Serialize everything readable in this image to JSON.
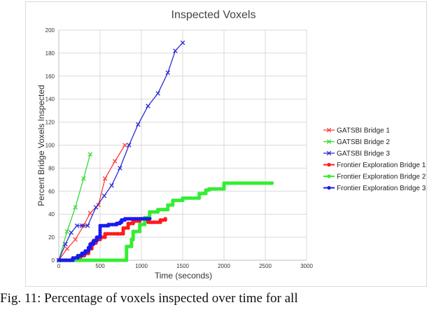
{
  "chart_data": {
    "type": "line",
    "title": "Inspected Voxels",
    "xlabel": "Time (seconds)",
    "ylabel": "Percent Bridge Voxels Inspected",
    "xlim": [
      0,
      3000
    ],
    "ylim": [
      0,
      200
    ],
    "x_ticks": [
      0,
      500,
      1000,
      1500,
      2000,
      2500,
      3000
    ],
    "y_ticks": [
      0,
      20,
      40,
      60,
      80,
      100,
      120,
      140,
      160,
      180,
      200
    ],
    "grid": true,
    "legend_position": "right",
    "series": [
      {
        "name": "GATSBI Bridge 1",
        "color": "#ff3b3b",
        "marker": "x",
        "step": false,
        "points": [
          [
            0,
            0
          ],
          [
            100,
            10
          ],
          [
            200,
            18
          ],
          [
            300,
            30
          ],
          [
            380,
            41
          ],
          [
            480,
            48
          ],
          [
            560,
            71
          ],
          [
            680,
            86
          ],
          [
            800,
            100
          ]
        ]
      },
      {
        "name": "GATSBI Bridge 2",
        "color": "#33dd33",
        "marker": "x",
        "step": false,
        "points": [
          [
            0,
            0
          ],
          [
            100,
            25
          ],
          [
            200,
            46
          ],
          [
            300,
            71
          ],
          [
            380,
            92
          ]
        ]
      },
      {
        "name": "GATSBI Bridge 3",
        "color": "#2a2ad6",
        "marker": "x",
        "step": false,
        "points": [
          [
            0,
            0
          ],
          [
            80,
            14
          ],
          [
            150,
            24
          ],
          [
            220,
            30
          ],
          [
            280,
            30
          ],
          [
            350,
            30
          ],
          [
            450,
            46
          ],
          [
            550,
            56
          ],
          [
            640,
            65
          ],
          [
            740,
            80
          ],
          [
            850,
            100
          ],
          [
            960,
            118
          ],
          [
            1080,
            134
          ],
          [
            1200,
            145
          ],
          [
            1320,
            163
          ],
          [
            1410,
            182
          ],
          [
            1500,
            189
          ]
        ]
      },
      {
        "name": "Frontier Exploration Bridge 1",
        "color": "#ff1a1a",
        "marker": "dot",
        "step": true,
        "points": [
          [
            0,
            0
          ],
          [
            150,
            0
          ],
          [
            200,
            2
          ],
          [
            260,
            4
          ],
          [
            310,
            6
          ],
          [
            360,
            10
          ],
          [
            400,
            15
          ],
          [
            450,
            18
          ],
          [
            500,
            20
          ],
          [
            560,
            23
          ],
          [
            720,
            23
          ],
          [
            780,
            28
          ],
          [
            840,
            32
          ],
          [
            900,
            34
          ],
          [
            980,
            36
          ],
          [
            1080,
            33
          ],
          [
            1150,
            33
          ],
          [
            1230,
            35
          ],
          [
            1290,
            36
          ]
        ]
      },
      {
        "name": "Frontier Exploration Bridge 2",
        "color": "#33ee33",
        "marker": "dot",
        "step": true,
        "points": [
          [
            0,
            0
          ],
          [
            800,
            0
          ],
          [
            820,
            12
          ],
          [
            880,
            18
          ],
          [
            900,
            25
          ],
          [
            980,
            31
          ],
          [
            1040,
            37
          ],
          [
            1100,
            42
          ],
          [
            1200,
            44
          ],
          [
            1320,
            48
          ],
          [
            1380,
            52
          ],
          [
            1500,
            54
          ],
          [
            1700,
            58
          ],
          [
            1780,
            61
          ],
          [
            1820,
            62
          ],
          [
            2000,
            67
          ],
          [
            2580,
            67
          ]
        ]
      },
      {
        "name": "Frontier Exploration Bridge 3",
        "color": "#1a1aee",
        "marker": "dot",
        "step": true,
        "points": [
          [
            0,
            0
          ],
          [
            140,
            0
          ],
          [
            170,
            2
          ],
          [
            230,
            4
          ],
          [
            280,
            6
          ],
          [
            320,
            8
          ],
          [
            360,
            11
          ],
          [
            380,
            14
          ],
          [
            420,
            17
          ],
          [
            460,
            20
          ],
          [
            500,
            30
          ],
          [
            600,
            31
          ],
          [
            700,
            32
          ],
          [
            740,
            33
          ],
          [
            760,
            35
          ],
          [
            800,
            36
          ],
          [
            1100,
            36
          ]
        ]
      }
    ]
  },
  "caption": "Fig. 11: Percentage of voxels inspected over time for all"
}
